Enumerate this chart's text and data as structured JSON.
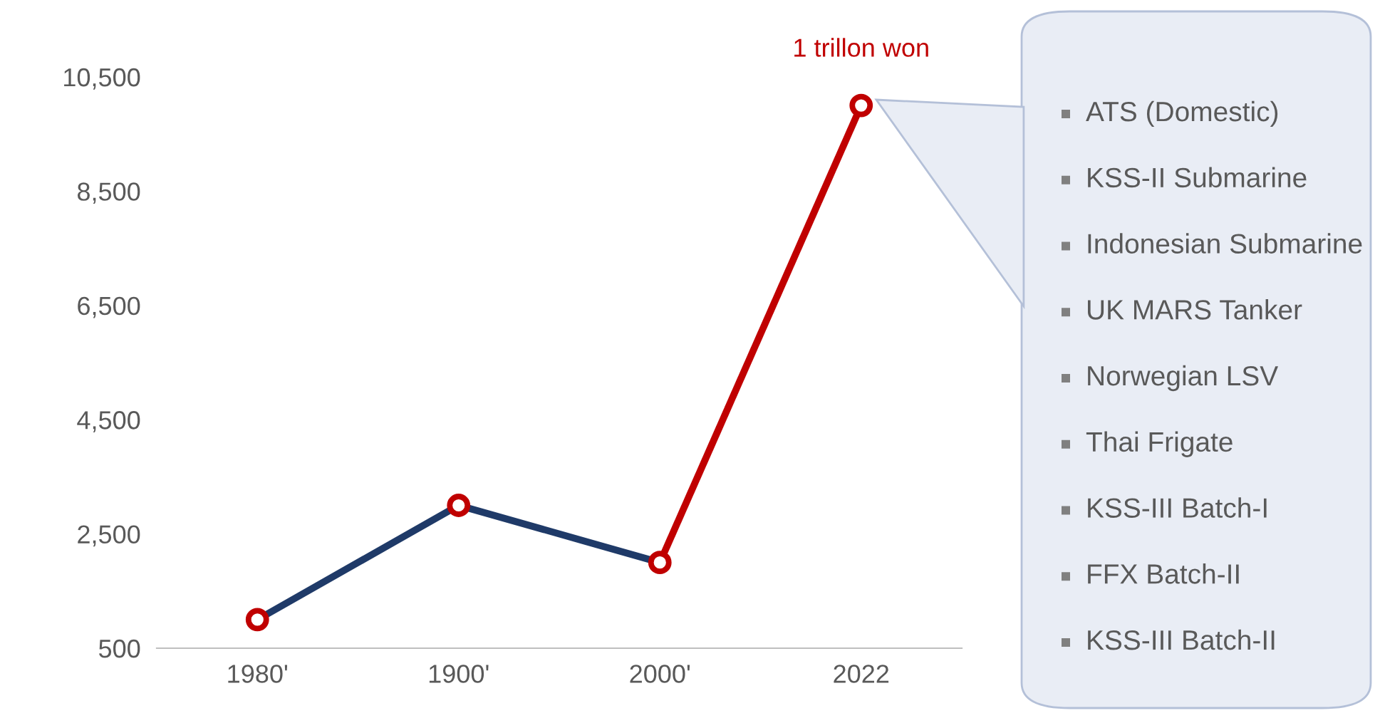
{
  "chart_data": {
    "type": "line",
    "categories": [
      "1980'",
      "1900'",
      "2000'",
      "2022"
    ],
    "series": [
      {
        "color": "#1f3a68",
        "values": [
          1000,
          3000,
          2000,
          null
        ]
      },
      {
        "color": "#c00000",
        "values": [
          null,
          null,
          2000,
          10000
        ]
      },
      {
        "type": "scatter",
        "color": "#c00000",
        "values": [
          1000,
          3000,
          2000,
          10000
        ],
        "marker": "circle"
      }
    ],
    "ylim": [
      500,
      10500
    ],
    "yticks": [
      {
        "value": 500,
        "label": "500"
      },
      {
        "value": 2500,
        "label": "2,500"
      },
      {
        "value": 4500,
        "label": "4,500"
      },
      {
        "value": 6500,
        "label": "6,500"
      },
      {
        "value": 8500,
        "label": "8,500"
      },
      {
        "value": 10500,
        "label": "10,500"
      }
    ],
    "marker": "none",
    "grid": false,
    "legend": false,
    "annotations": [
      {
        "text": "1 trillon won",
        "x": "2022",
        "y": 10000
      },
      "ATS (Domestic)",
      "KSS-II Submarine",
      "Indonesian Submarine",
      "UK MARS Tanker",
      "Norwegian LSV",
      "Thai Frigate",
      "KSS-III Batch-I",
      "FFX Batch-II",
      "KSS-III Batch-II"
    ]
  }
}
